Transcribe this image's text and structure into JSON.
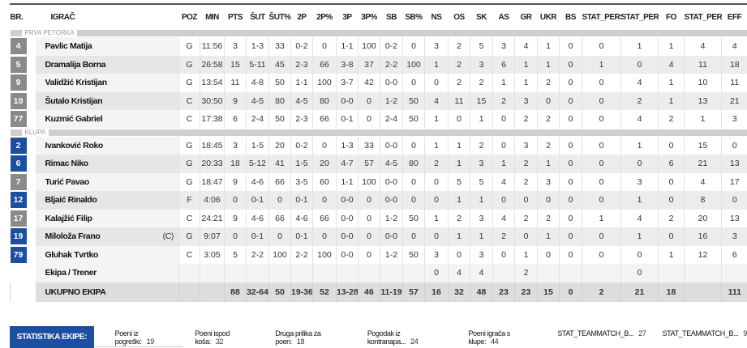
{
  "headers": [
    "BR.",
    "IGRAČ",
    "POZ",
    "MIN",
    "PTS",
    "ŠUT",
    "ŠUT%",
    "2P",
    "2P%",
    "3P",
    "3P%",
    "SB",
    "SB%",
    "NS",
    "OS",
    "SK",
    "AS",
    "GR",
    "UKR",
    "BS",
    "STAT_PERS...",
    "STAT_PERS...",
    "FO",
    "STAT_PERS...",
    "EFF"
  ],
  "colors": {
    "starter_badge": "#8a8a8a",
    "bench_badge": "#1d4fa0",
    "accent": "#1d4fa0"
  },
  "groups": [
    {
      "label": "PRVA PETORKA",
      "players": [
        {
          "no": "4",
          "name": "Pavlic Matija",
          "badge": "grey",
          "stats": [
            "G",
            "11:56",
            "3",
            "1-3",
            "33",
            "0-2",
            "0",
            "1-1",
            "100",
            "0-2",
            "0",
            "3",
            "2",
            "5",
            "3",
            "4",
            "1",
            "0",
            "0",
            "1",
            "1",
            "4",
            "4"
          ]
        },
        {
          "no": "5",
          "name": "Dramalija Borna",
          "badge": "grey",
          "stats": [
            "G",
            "26:58",
            "15",
            "5-11",
            "45",
            "2-3",
            "66",
            "3-8",
            "37",
            "2-2",
            "100",
            "1",
            "2",
            "3",
            "6",
            "1",
            "1",
            "0",
            "1",
            "0",
            "4",
            "11",
            "18"
          ]
        },
        {
          "no": "9",
          "name": "Validžić Kristijan",
          "badge": "grey",
          "stats": [
            "G",
            "13:54",
            "11",
            "4-8",
            "50",
            "1-1",
            "100",
            "3-7",
            "42",
            "0-0",
            "0",
            "0",
            "2",
            "2",
            "1",
            "1",
            "2",
            "0",
            "0",
            "4",
            "1",
            "10",
            "11"
          ]
        },
        {
          "no": "10",
          "name": "Šutalo Kristijan",
          "badge": "grey",
          "stats": [
            "C",
            "30:50",
            "9",
            "4-5",
            "80",
            "4-5",
            "80",
            "0-0",
            "0",
            "1-2",
            "50",
            "4",
            "11",
            "15",
            "2",
            "3",
            "0",
            "0",
            "0",
            "2",
            "1",
            "13",
            "21"
          ]
        },
        {
          "no": "77",
          "name": "Kuzmić Gabriel",
          "badge": "grey",
          "stats": [
            "C",
            "17:38",
            "6",
            "2-4",
            "50",
            "2-3",
            "66",
            "0-1",
            "0",
            "2-4",
            "50",
            "1",
            "0",
            "1",
            "0",
            "2",
            "2",
            "0",
            "0",
            "4",
            "2",
            "1",
            "3"
          ]
        }
      ]
    },
    {
      "label": "KLUPA",
      "players": [
        {
          "no": "2",
          "name": "Ivanković Roko",
          "badge": "blue",
          "stats": [
            "G",
            "18:45",
            "3",
            "1-5",
            "20",
            "0-2",
            "0",
            "1-3",
            "33",
            "0-0",
            "0",
            "1",
            "1",
            "2",
            "0",
            "3",
            "2",
            "0",
            "0",
            "1",
            "0",
            "15",
            "0"
          ]
        },
        {
          "no": "6",
          "name": "Rimac Niko",
          "badge": "blue",
          "stats": [
            "G",
            "20:33",
            "18",
            "5-12",
            "41",
            "1-5",
            "20",
            "4-7",
            "57",
            "4-5",
            "80",
            "2",
            "1",
            "3",
            "1",
            "2",
            "1",
            "0",
            "0",
            "0",
            "6",
            "21",
            "13"
          ]
        },
        {
          "no": "7",
          "name": "Turić Pavao",
          "badge": "grey",
          "stats": [
            "G",
            "18:47",
            "9",
            "4-6",
            "66",
            "3-5",
            "60",
            "1-1",
            "100",
            "0-0",
            "0",
            "0",
            "5",
            "5",
            "4",
            "2",
            "3",
            "0",
            "0",
            "3",
            "0",
            "4",
            "17"
          ]
        },
        {
          "no": "12",
          "name": "Bljaić Rinaldo",
          "badge": "blue",
          "stats": [
            "F",
            "4:06",
            "0",
            "0-1",
            "0",
            "0-1",
            "0",
            "0-0",
            "0",
            "0-0",
            "0",
            "0",
            "1",
            "1",
            "0",
            "0",
            "0",
            "0",
            "0",
            "1",
            "0",
            "8",
            "0"
          ]
        },
        {
          "no": "17",
          "name": "Kalajžić Filip",
          "badge": "grey",
          "stats": [
            "C",
            "24:21",
            "9",
            "4-6",
            "66",
            "4-6",
            "66",
            "0-0",
            "0",
            "1-2",
            "50",
            "1",
            "2",
            "3",
            "4",
            "2",
            "2",
            "0",
            "1",
            "4",
            "2",
            "20",
            "13"
          ]
        },
        {
          "no": "19",
          "name": "Miloloža Frano",
          "captain": "(C)",
          "badge": "blue",
          "stats": [
            "G",
            "9:07",
            "0",
            "0-1",
            "0",
            "0-1",
            "0",
            "0-0",
            "0",
            "0-0",
            "0",
            "0",
            "1",
            "1",
            "2",
            "0",
            "1",
            "0",
            "0",
            "1",
            "0",
            "16",
            "3"
          ]
        },
        {
          "no": "79",
          "name": "Gluhak Tvrtko",
          "badge": "blue",
          "stats": [
            "C",
            "3:05",
            "5",
            "2-2",
            "100",
            "2-2",
            "100",
            "0-0",
            "0",
            "1-2",
            "50",
            "3",
            "0",
            "3",
            "0",
            "1",
            "0",
            "0",
            "0",
            "0",
            "1",
            "12",
            "6"
          ]
        }
      ]
    }
  ],
  "ekipa": {
    "name": "Ekipa / Trener",
    "stats": [
      "",
      "",
      "",
      "",
      "",
      "",
      "",
      "",
      "",
      "",
      "",
      "0",
      "4",
      "4",
      "",
      "2",
      "",
      "",
      "",
      "0",
      "",
      "",
      ""
    ]
  },
  "total": {
    "name": "UKUPNO EKIPA",
    "stats": [
      "",
      "",
      "88",
      "32-64",
      "50",
      "19-36",
      "52",
      "13-28",
      "46",
      "11-19",
      "57",
      "16",
      "32",
      "48",
      "23",
      "23",
      "15",
      "0",
      "2",
      "21",
      "18",
      "",
      "111"
    ]
  },
  "footer": {
    "title": "STATISTIKA EKIPE:",
    "items": [
      {
        "label": "Poeni iz pogreški:",
        "value": "19"
      },
      {
        "label": "Poeni ispod koša:",
        "value": "32"
      },
      {
        "label": "Druga prilika za poen:",
        "value": "18"
      },
      {
        "label": "Pogodak iz kontranapa...",
        "value": "24"
      },
      {
        "label": "Poeni igrača s klupe:",
        "value": "44"
      },
      {
        "label": "STAT_TEAMMATCH_B...",
        "value": "27"
      },
      {
        "label": "STAT_TEAMMATCH_B...",
        "value": "9"
      }
    ]
  }
}
